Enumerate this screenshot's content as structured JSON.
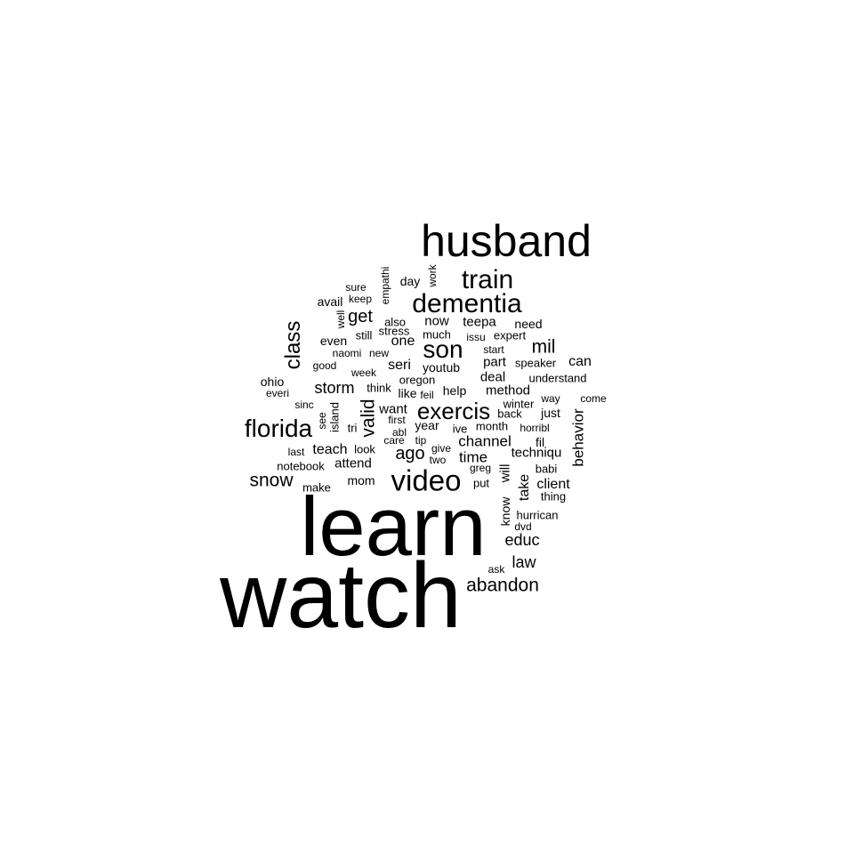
{
  "wordcloud": {
    "color": "#000000",
    "background": "#ffffff",
    "words": [
      {
        "text": "watch"
      },
      {
        "text": "learn"
      },
      {
        "text": "husband"
      },
      {
        "text": "video"
      },
      {
        "text": "dementia"
      },
      {
        "text": "train"
      },
      {
        "text": "florida"
      },
      {
        "text": "son"
      },
      {
        "text": "exercis"
      },
      {
        "text": "class"
      },
      {
        "text": "abandon"
      },
      {
        "text": "snow"
      },
      {
        "text": "mil"
      },
      {
        "text": "valid"
      },
      {
        "text": "get"
      },
      {
        "text": "storm"
      },
      {
        "text": "ago"
      },
      {
        "text": "educ"
      },
      {
        "text": "channel"
      },
      {
        "text": "time"
      },
      {
        "text": "law"
      },
      {
        "text": "behavior"
      },
      {
        "text": "method"
      },
      {
        "text": "client"
      },
      {
        "text": "seri"
      },
      {
        "text": "teach"
      },
      {
        "text": "techniqu"
      },
      {
        "text": "deal"
      },
      {
        "text": "can"
      },
      {
        "text": "one"
      },
      {
        "text": "now"
      },
      {
        "text": "attend"
      },
      {
        "text": "teepa"
      },
      {
        "text": "take"
      },
      {
        "text": "want"
      },
      {
        "text": "part"
      },
      {
        "text": "just"
      },
      {
        "text": "will"
      },
      {
        "text": "mom"
      },
      {
        "text": "need"
      },
      {
        "text": "day"
      },
      {
        "text": "ohio"
      },
      {
        "text": "even"
      },
      {
        "text": "avail"
      },
      {
        "text": "year"
      },
      {
        "text": "youtub"
      },
      {
        "text": "help"
      },
      {
        "text": "know"
      },
      {
        "text": "make"
      },
      {
        "text": "island"
      },
      {
        "text": "notebook"
      },
      {
        "text": "also"
      },
      {
        "text": "like"
      },
      {
        "text": "fil"
      },
      {
        "text": "tri"
      },
      {
        "text": "ive"
      },
      {
        "text": "speaker"
      },
      {
        "text": "hurrican"
      },
      {
        "text": "understand"
      },
      {
        "text": "oregon"
      },
      {
        "text": "think"
      },
      {
        "text": "expert"
      },
      {
        "text": "month"
      },
      {
        "text": "stress"
      },
      {
        "text": "much"
      },
      {
        "text": "still"
      },
      {
        "text": "winter"
      },
      {
        "text": "empathi"
      },
      {
        "text": "work"
      },
      {
        "text": "well"
      },
      {
        "text": "keep"
      },
      {
        "text": "sure"
      },
      {
        "text": "look"
      },
      {
        "text": "back"
      },
      {
        "text": "thing"
      },
      {
        "text": "put"
      },
      {
        "text": "greg"
      },
      {
        "text": "babi"
      },
      {
        "text": "issu"
      },
      {
        "text": "start"
      },
      {
        "text": "naomi"
      },
      {
        "text": "new"
      },
      {
        "text": "good"
      },
      {
        "text": "week"
      },
      {
        "text": "everi"
      },
      {
        "text": "sinc"
      },
      {
        "text": "see"
      },
      {
        "text": "last"
      },
      {
        "text": "first"
      },
      {
        "text": "abl"
      },
      {
        "text": "care"
      },
      {
        "text": "tip"
      },
      {
        "text": "give"
      },
      {
        "text": "two"
      },
      {
        "text": "feil"
      },
      {
        "text": "way"
      },
      {
        "text": "come"
      },
      {
        "text": "horribl"
      },
      {
        "text": "dvd"
      },
      {
        "text": "ask"
      }
    ]
  }
}
